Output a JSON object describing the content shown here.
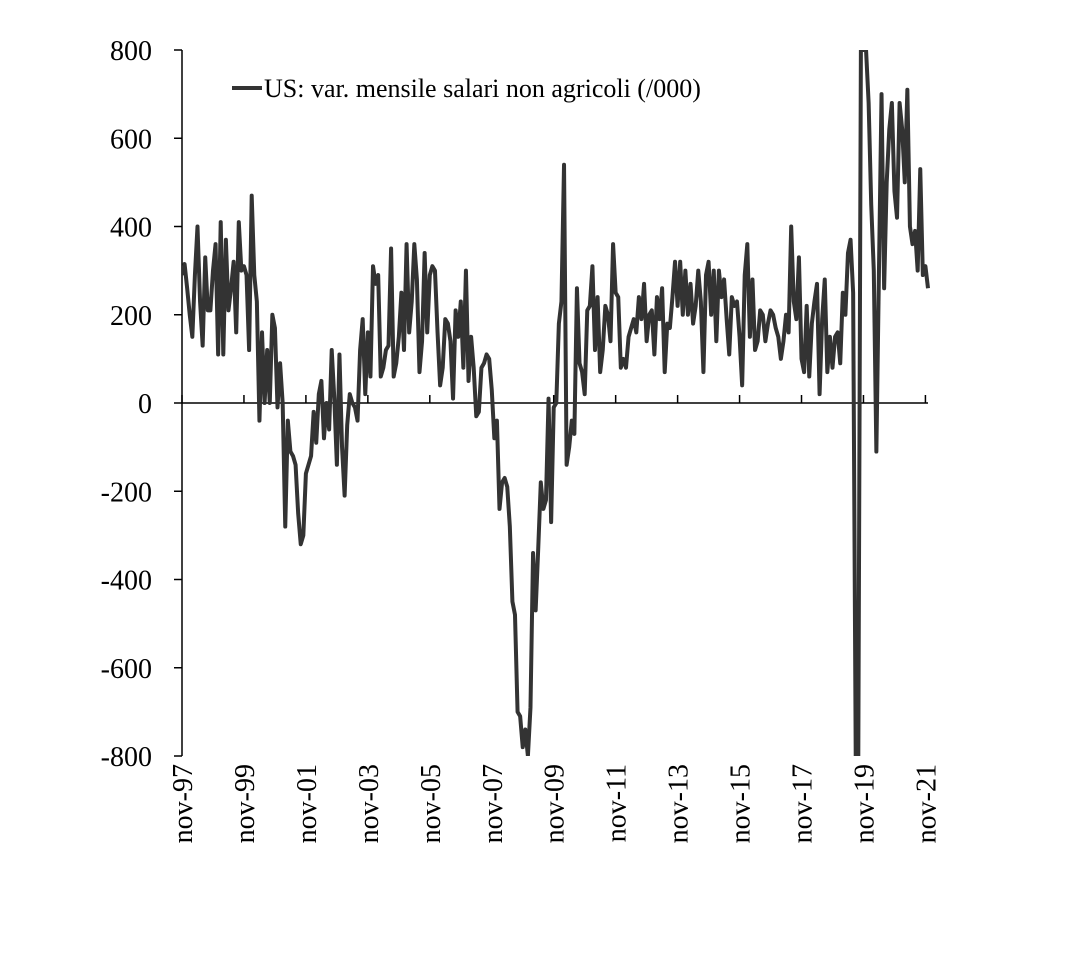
{
  "chart_data": {
    "type": "line",
    "title": "",
    "xlabel": "",
    "ylabel": "",
    "ylim": [
      -800,
      800
    ],
    "yticks": [
      -800,
      -600,
      -400,
      -200,
      0,
      200,
      400,
      600,
      800
    ],
    "ytick_labels": [
      "-800",
      "-600",
      "-400",
      "-200",
      "0",
      "200",
      "400",
      "600",
      "800"
    ],
    "xtick_labels": [
      "nov-97",
      "nov-99",
      "nov-01",
      "nov-03",
      "nov-05",
      "nov-07",
      "nov-09",
      "nov-11",
      "nov-13",
      "nov-15",
      "nov-17",
      "nov-19",
      "nov-21"
    ],
    "legend": {
      "label": "US: var. mensile salari non agricoli (/000)",
      "position": "top-left"
    },
    "grid": false,
    "colors": {
      "line": "#333333",
      "axis": "#000000"
    },
    "series": [
      {
        "name": "US: var. mensile salari non agricoli (/000)",
        "start": "1997-11",
        "frequency": "monthly",
        "values": [
          290,
          315,
          260,
          200,
          150,
          290,
          400,
          230,
          130,
          330,
          210,
          210,
          300,
          360,
          110,
          410,
          110,
          370,
          210,
          260,
          320,
          160,
          410,
          300,
          310,
          290,
          120,
          470,
          290,
          230,
          -40,
          160,
          0,
          120,
          0,
          200,
          170,
          -10,
          90,
          0,
          -280,
          -40,
          -110,
          -120,
          -140,
          -250,
          -320,
          -300,
          -160,
          -140,
          -120,
          -20,
          -90,
          20,
          50,
          -80,
          0,
          -60,
          120,
          10,
          -140,
          110,
          -100,
          -210,
          -50,
          20,
          0,
          -10,
          -40,
          120,
          190,
          20,
          160,
          60,
          310,
          270,
          290,
          60,
          80,
          120,
          130,
          350,
          60,
          90,
          150,
          250,
          120,
          360,
          160,
          230,
          360,
          280,
          70,
          140,
          340,
          160,
          290,
          310,
          300,
          160,
          40,
          80,
          190,
          180,
          140,
          10,
          210,
          150,
          230,
          80,
          300,
          50,
          150,
          80,
          -30,
          -20,
          80,
          90,
          110,
          100,
          30,
          -80,
          -40,
          -240,
          -180,
          -170,
          -190,
          -280,
          -450,
          -480,
          -700,
          -710,
          -780,
          -740,
          -800,
          -690,
          -340,
          -470,
          -330,
          -180,
          -240,
          -220,
          10,
          -270,
          -10,
          0,
          180,
          230,
          540,
          -140,
          -100,
          -40,
          -70,
          260,
          90,
          70,
          20,
          210,
          220,
          310,
          120,
          240,
          70,
          120,
          220,
          200,
          140,
          360,
          250,
          240,
          80,
          100,
          80,
          150,
          170,
          190,
          160,
          240,
          190,
          270,
          140,
          200,
          210,
          110,
          240,
          190,
          260,
          70,
          180,
          170,
          240,
          320,
          220,
          320,
          200,
          300,
          200,
          270,
          180,
          220,
          300,
          230,
          70,
          290,
          320,
          200,
          300,
          140,
          300,
          240,
          280,
          190,
          110,
          240,
          220,
          230,
          150,
          40,
          290,
          360,
          150,
          280,
          120,
          140,
          210,
          200,
          140,
          180,
          210,
          200,
          170,
          150,
          100,
          140,
          200,
          160,
          400,
          230,
          190,
          330,
          100,
          70,
          220,
          60,
          180,
          230,
          270,
          20,
          190,
          280,
          70,
          150,
          80,
          150,
          160,
          90,
          250,
          200,
          340,
          370,
          250,
          -800,
          -800,
          800,
          800,
          800,
          680,
          450,
          300,
          -110,
          300,
          700,
          260,
          500,
          620,
          680,
          480,
          420,
          680,
          620,
          500,
          710,
          400,
          360,
          390,
          300,
          530,
          290,
          310,
          260
        ]
      }
    ]
  }
}
